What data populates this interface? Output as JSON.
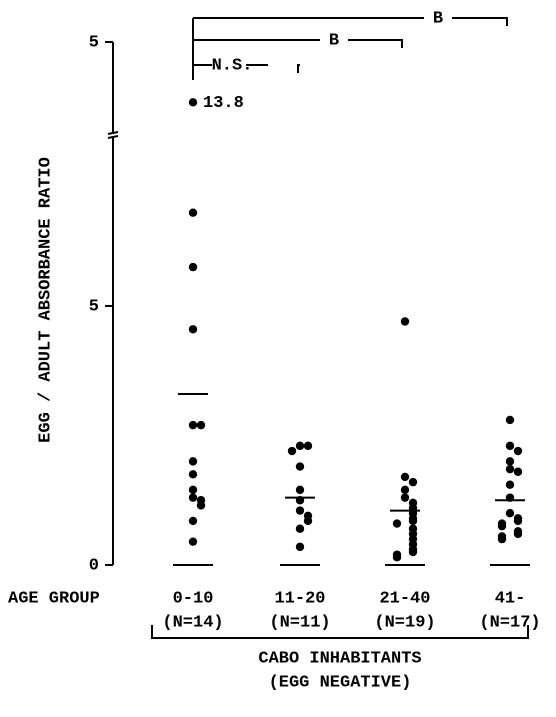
{
  "chart_data": {
    "type": "dot",
    "y_label": "EGG / ADULT ABSORBANCE RATIO",
    "x_label": "AGE GROUP",
    "categories": [
      "0-10",
      "11-20",
      "21-40",
      "41-"
    ],
    "n_labels": [
      "(N=14)",
      "(N=11)",
      "(N=19)",
      "(N=17)"
    ],
    "group_label": [
      "CABO INHABITANTS",
      "(EGG NEGATIVE)"
    ],
    "comparisons": [
      "N.S.",
      "B",
      "B"
    ],
    "annotations": [
      "13.8"
    ],
    "ylim": [
      0,
      15
    ],
    "ybreak": [
      8.3,
      13.15
    ],
    "yticks": [
      0,
      5,
      {
        "value": 15,
        "label": "5"
      }
    ],
    "color": "#000000",
    "groups": [
      {
        "values": [
          13.8,
          6.8,
          5.75,
          4.55,
          2.7,
          2.7,
          2.0,
          1.75,
          1.45,
          1.3,
          1.25,
          1.15,
          0.85,
          0.45
        ],
        "mean": 3.3
      },
      {
        "values": [
          2.3,
          2.3,
          2.2,
          1.9,
          1.45,
          1.25,
          1.05,
          0.95,
          0.85,
          0.7,
          0.35
        ],
        "mean": 1.3
      },
      {
        "values": [
          4.7,
          1.7,
          1.6,
          1.45,
          1.3,
          1.2,
          1.1,
          1.0,
          0.9,
          0.85,
          0.8,
          0.7,
          0.6,
          0.5,
          0.4,
          0.3,
          0.25,
          0.2,
          0.15
        ],
        "mean": 1.05
      },
      {
        "values": [
          2.8,
          2.3,
          2.2,
          2.0,
          1.85,
          1.8,
          1.55,
          1.3,
          1.0,
          0.9,
          0.85,
          0.8,
          0.75,
          0.65,
          0.6,
          0.55,
          0.5
        ],
        "mean": 1.25
      }
    ]
  }
}
